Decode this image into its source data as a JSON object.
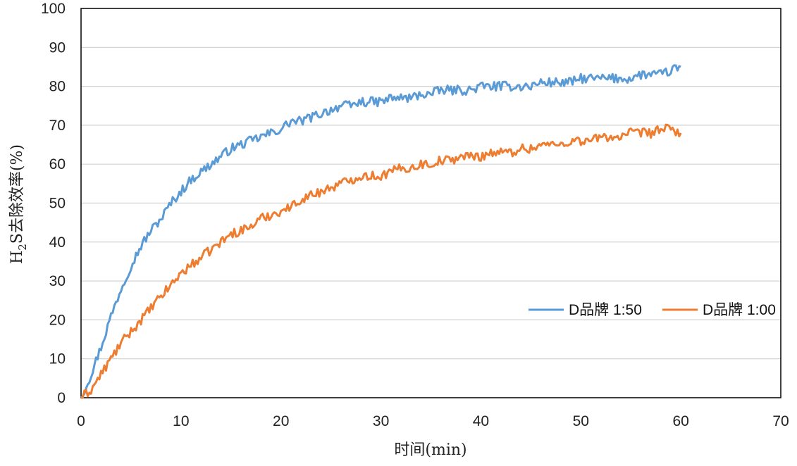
{
  "chart_data": {
    "type": "line",
    "xlabel": "时间(min)",
    "ylabel_main": "H",
    "ylabel_sub": "2",
    "ylabel_rest": "S去除效率(%)",
    "xlim": [
      0,
      70
    ],
    "ylim": [
      0,
      100
    ],
    "x_ticks": [
      0,
      10,
      20,
      30,
      40,
      50,
      60,
      70
    ],
    "y_ticks": [
      0,
      10,
      20,
      30,
      40,
      50,
      60,
      70,
      80,
      90,
      100
    ],
    "grid": "horizontal",
    "legend_position": "right-middle",
    "series": [
      {
        "name": "D品牌 1:50",
        "color": "#5B9BD5",
        "x": [
          0,
          1,
          2,
          3,
          4,
          5,
          6,
          7,
          8,
          9,
          10,
          11,
          12,
          13,
          14,
          15,
          16,
          17,
          18,
          19,
          20,
          21,
          22,
          23,
          24,
          25,
          26,
          27,
          28,
          29,
          30,
          31,
          32,
          33,
          34,
          35,
          36,
          37,
          38,
          39,
          40,
          41,
          42,
          43,
          44,
          45,
          46,
          47,
          48,
          49,
          50,
          51,
          52,
          53,
          54,
          55,
          56,
          57,
          58,
          59,
          60
        ],
        "y": [
          0,
          6,
          13,
          21,
          28,
          34,
          39,
          43,
          46,
          50,
          53,
          56,
          58,
          60,
          62,
          64,
          65,
          66,
          67,
          68,
          69,
          71,
          71,
          72,
          73,
          74,
          75,
          75,
          76,
          76,
          76,
          77,
          77,
          77,
          78,
          78,
          79,
          79,
          79,
          79,
          80,
          80,
          80,
          80,
          80,
          80,
          81,
          81,
          81,
          81,
          82,
          82,
          82,
          82,
          82,
          82,
          83,
          83,
          83,
          84,
          85
        ]
      },
      {
        "name": "D品牌 1:00",
        "color": "#ED7D31",
        "x": [
          0,
          1,
          2,
          3,
          4,
          5,
          6,
          7,
          8,
          9,
          10,
          11,
          12,
          13,
          14,
          15,
          16,
          17,
          18,
          19,
          20,
          21,
          22,
          23,
          24,
          25,
          26,
          27,
          28,
          29,
          30,
          31,
          32,
          33,
          34,
          35,
          36,
          37,
          38,
          39,
          40,
          41,
          42,
          43,
          44,
          45,
          46,
          47,
          48,
          49,
          50,
          51,
          52,
          53,
          54,
          55,
          56,
          57,
          58,
          59,
          60
        ],
        "y": [
          0,
          2,
          6,
          10,
          14,
          17,
          20,
          23,
          26,
          29,
          32,
          34,
          36,
          38,
          40,
          42,
          43,
          44,
          46,
          47,
          48,
          49,
          51,
          52,
          53,
          54,
          55,
          56,
          57,
          57,
          57,
          58,
          59,
          59,
          60,
          60,
          61,
          61,
          62,
          62,
          62,
          63,
          63,
          63,
          64,
          64,
          65,
          65,
          65,
          66,
          66,
          66,
          67,
          67,
          67,
          68,
          68,
          68,
          69,
          69,
          68
        ]
      }
    ]
  }
}
